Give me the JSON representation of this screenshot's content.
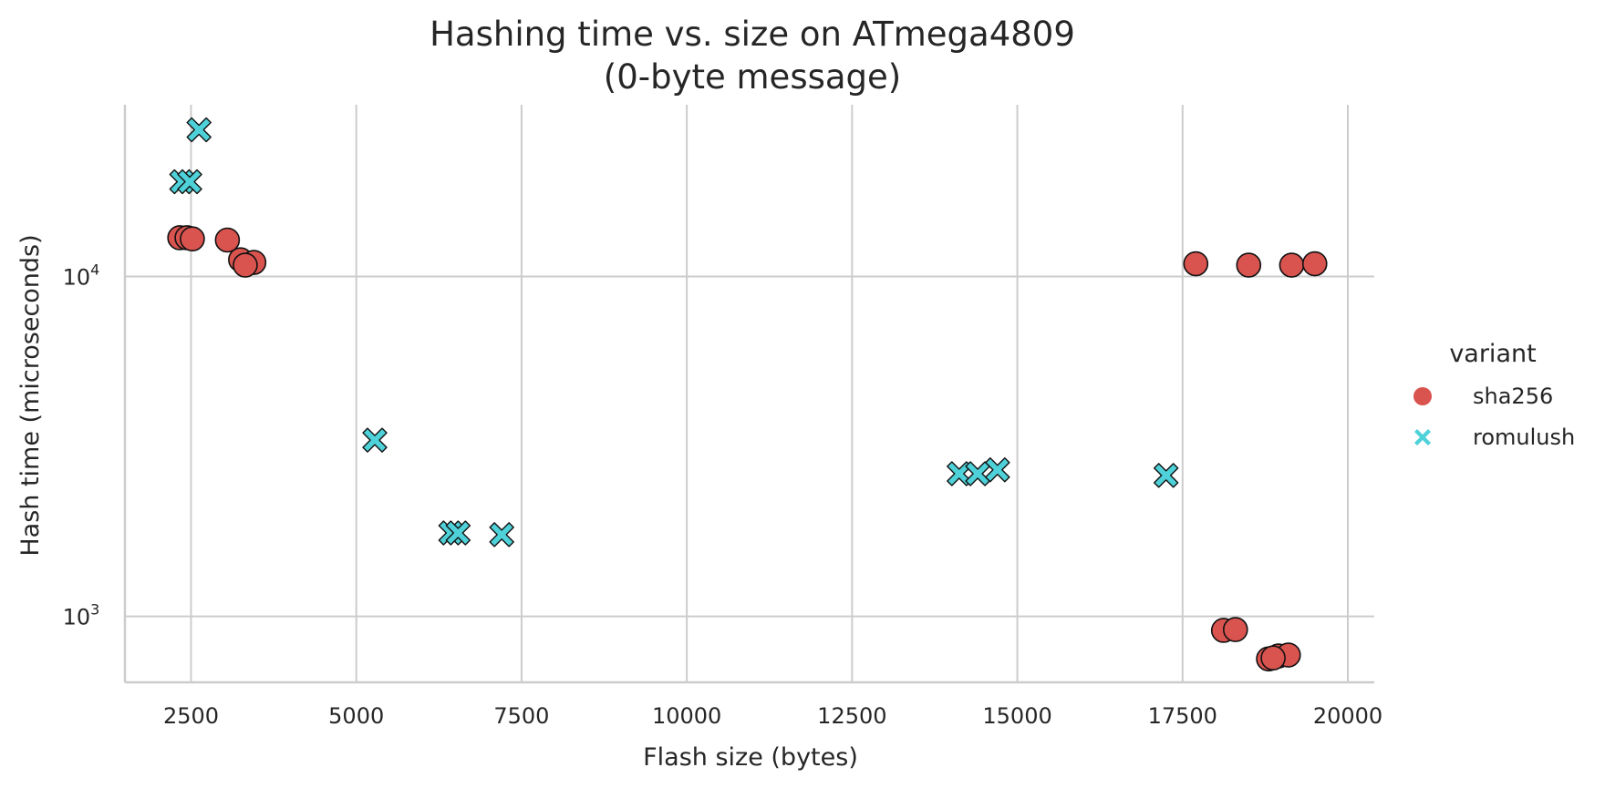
{
  "chart_data": {
    "type": "scatter",
    "title": "Hashing time vs. size on ATmega4809",
    "subtitle": "(0-byte message)",
    "xlabel": "Flash size (bytes)",
    "ylabel": "Hash time (microseconds)",
    "xscale": "linear",
    "yscale": "log",
    "xlim": [
      1500,
      20400
    ],
    "ylim": [
      640,
      32000
    ],
    "xticks": [
      2500,
      5000,
      7500,
      10000,
      12500,
      15000,
      17500,
      20000
    ],
    "xtick_labels": [
      "2500",
      "5000",
      "7500",
      "10000",
      "12500",
      "15000",
      "17500",
      "20000"
    ],
    "yticks": [
      1000,
      10000
    ],
    "ytick_labels": [
      {
        "base": "10",
        "exp": "3"
      },
      {
        "base": "10",
        "exp": "4"
      }
    ],
    "grid": true,
    "legend": {
      "title": "variant",
      "placement": "right",
      "entries": [
        "sha256",
        "romulush"
      ]
    },
    "series": [
      {
        "name": "sha256",
        "marker": "circle",
        "color": "#d9534f",
        "points": [
          {
            "x": 2330,
            "y": 13000
          },
          {
            "x": 2440,
            "y": 13000
          },
          {
            "x": 2520,
            "y": 12900
          },
          {
            "x": 3050,
            "y": 12800
          },
          {
            "x": 3250,
            "y": 11200
          },
          {
            "x": 3450,
            "y": 11000
          },
          {
            "x": 3320,
            "y": 10800
          },
          {
            "x": 17700,
            "y": 10900
          },
          {
            "x": 18500,
            "y": 10800
          },
          {
            "x": 19150,
            "y": 10800
          },
          {
            "x": 19500,
            "y": 10900
          },
          {
            "x": 18120,
            "y": 910
          },
          {
            "x": 18300,
            "y": 915
          },
          {
            "x": 18800,
            "y": 750
          },
          {
            "x": 18950,
            "y": 765
          },
          {
            "x": 19100,
            "y": 770
          },
          {
            "x": 18870,
            "y": 755
          }
        ]
      },
      {
        "name": "romulush",
        "marker": "x",
        "color": "#4fd1d9",
        "points": [
          {
            "x": 2620,
            "y": 27000
          },
          {
            "x": 2360,
            "y": 19000
          },
          {
            "x": 2480,
            "y": 19000
          },
          {
            "x": 5280,
            "y": 3300
          },
          {
            "x": 6430,
            "y": 1760
          },
          {
            "x": 6540,
            "y": 1760
          },
          {
            "x": 7200,
            "y": 1740
          },
          {
            "x": 14120,
            "y": 2630
          },
          {
            "x": 14400,
            "y": 2630
          },
          {
            "x": 14700,
            "y": 2700
          },
          {
            "x": 17250,
            "y": 2600
          }
        ]
      }
    ]
  }
}
